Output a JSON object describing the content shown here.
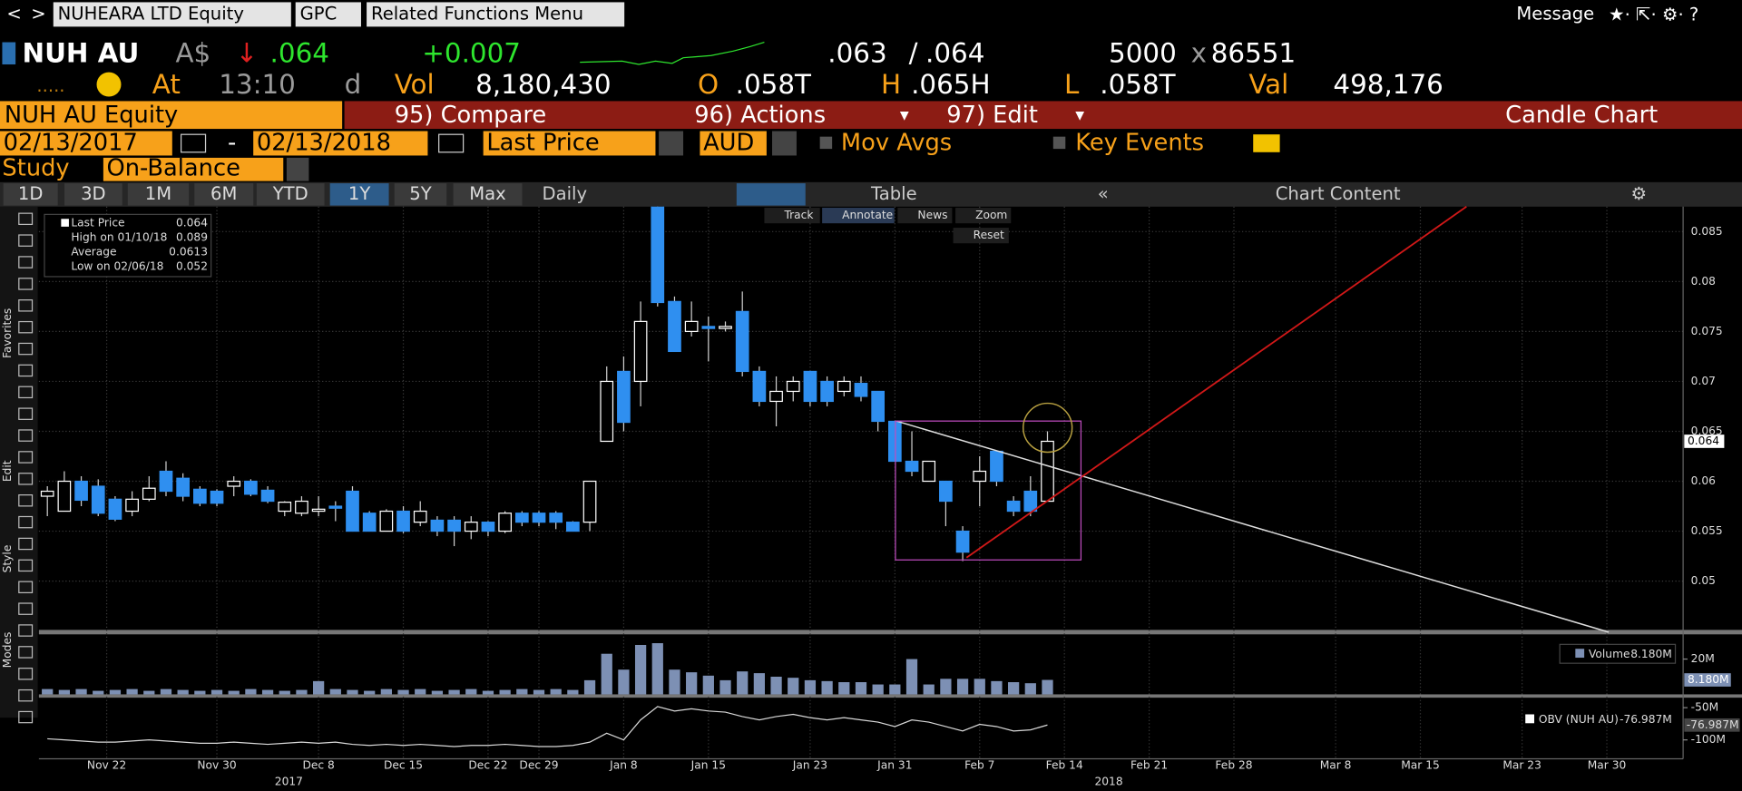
{
  "toolbar": {
    "security": "NUHEARA LTD Equity",
    "source": "GPC",
    "menu": "Related Functions Menu",
    "message": "Message"
  },
  "quote": {
    "ticker": "NUH AU",
    "currency": "A$",
    "last": ".064",
    "change": "+0.007",
    "bid": ".063",
    "separator": "/",
    "ask": ".064",
    "bid_size": "5000",
    "size_separator": "x",
    "ask_size": "86551"
  },
  "quote_detail": {
    "at": "At",
    "time": "13:10",
    "time_flag": "d",
    "vol_label": "Vol",
    "vol": "8,180,430",
    "open_label": "O",
    "open": ".058T",
    "high_label": "H",
    "high": ".065H",
    "low_label": "L",
    "low": ".058T",
    "val_label": "Val",
    "val": "498,176"
  },
  "menu_bar": {
    "security": "NUH AU Equity",
    "compare": "95) Compare",
    "actions": "96) Actions",
    "edit": "97) Edit",
    "title": "Candle Chart"
  },
  "settings": {
    "start": "02/13/2017",
    "dash": "-",
    "end": "02/13/2018",
    "field": "Last Price",
    "currency": "AUD",
    "mov_avgs": "Mov Avgs",
    "key_events": "Key Events",
    "study_label": "Study",
    "study": "On-Balance"
  },
  "tabs": [
    "1D",
    "3D",
    "1M",
    "6M",
    "YTD",
    "1Y",
    "5Y",
    "Max"
  ],
  "frequency": "Daily",
  "table": "Table",
  "chart_content": "Chart Content",
  "chart_tools": [
    "Track",
    "Annotate",
    "News",
    "Zoom",
    "Reset"
  ],
  "side_labels": [
    "Favorites",
    "Edit",
    "Style",
    "Modes"
  ],
  "chart_data": [
    {
      "type": "candlestick",
      "up_color": "#ffffff",
      "down_color": "#2f8ff0",
      "grid": true,
      "legend": [
        {
          "name": "Last Price",
          "value": "0.064"
        },
        {
          "name": "High on 01/10/18",
          "value": "0.089"
        },
        {
          "name": "Average",
          "value": "0.0613"
        },
        {
          "name": "Low on 02/06/18",
          "value": "0.052"
        }
      ],
      "open": [
        0.0585,
        0.057,
        0.06,
        0.0595,
        0.0582,
        0.057,
        0.0582,
        0.061,
        0.0603,
        0.0592,
        0.059,
        0.0595,
        0.06,
        0.0591,
        0.057,
        0.0568,
        0.057,
        0.0575,
        0.059,
        0.0568,
        0.055,
        0.057,
        0.0559,
        0.0561,
        0.0561,
        0.055,
        0.0559,
        0.055,
        0.0568,
        0.0568,
        0.0568,
        0.0559,
        0.0559,
        0.064,
        0.071,
        0.07,
        0.088,
        0.078,
        0.075,
        0.0755,
        0.0753,
        0.077,
        0.071,
        0.068,
        0.069,
        0.071,
        0.07,
        0.069,
        0.0698,
        0.069,
        0.066,
        0.062,
        0.06,
        0.06,
        0.055,
        0.06,
        0.063,
        0.058,
        0.059,
        0.058
      ],
      "high": [
        0.0595,
        0.061,
        0.0605,
        0.0602,
        0.0585,
        0.059,
        0.0605,
        0.062,
        0.0608,
        0.0595,
        0.0592,
        0.0605,
        0.0602,
        0.0595,
        0.058,
        0.0585,
        0.0585,
        0.058,
        0.0595,
        0.057,
        0.0572,
        0.0575,
        0.058,
        0.0565,
        0.0565,
        0.0565,
        0.056,
        0.057,
        0.057,
        0.057,
        0.057,
        0.056,
        0.06,
        0.0715,
        0.0725,
        0.078,
        0.089,
        0.0785,
        0.078,
        0.0765,
        0.076,
        0.079,
        0.0715,
        0.0705,
        0.0705,
        0.071,
        0.0705,
        0.0705,
        0.0705,
        0.069,
        0.066,
        0.065,
        0.062,
        0.06,
        0.0555,
        0.0625,
        0.063,
        0.0585,
        0.0605,
        0.065
      ],
      "low": [
        0.0565,
        0.057,
        0.0575,
        0.0565,
        0.056,
        0.0565,
        0.058,
        0.0585,
        0.058,
        0.0575,
        0.0575,
        0.0585,
        0.0585,
        0.0578,
        0.0565,
        0.0565,
        0.0565,
        0.056,
        0.055,
        0.055,
        0.055,
        0.0548,
        0.0555,
        0.0545,
        0.0535,
        0.0542,
        0.0545,
        0.0548,
        0.0555,
        0.0555,
        0.0552,
        0.055,
        0.055,
        0.064,
        0.065,
        0.0675,
        0.0775,
        0.073,
        0.0745,
        0.072,
        0.075,
        0.0705,
        0.0675,
        0.0655,
        0.068,
        0.0675,
        0.0675,
        0.0685,
        0.068,
        0.065,
        0.062,
        0.0605,
        0.06,
        0.0555,
        0.052,
        0.0575,
        0.0595,
        0.0565,
        0.0565,
        0.058
      ],
      "close": [
        0.059,
        0.06,
        0.0581,
        0.0568,
        0.0562,
        0.0582,
        0.0593,
        0.059,
        0.0585,
        0.0578,
        0.0578,
        0.06,
        0.0587,
        0.058,
        0.0579,
        0.058,
        0.0572,
        0.0573,
        0.055,
        0.055,
        0.057,
        0.055,
        0.057,
        0.055,
        0.055,
        0.0559,
        0.055,
        0.0568,
        0.0559,
        0.0559,
        0.0559,
        0.055,
        0.06,
        0.07,
        0.0659,
        0.076,
        0.0779,
        0.073,
        0.076,
        0.0753,
        0.0755,
        0.071,
        0.068,
        0.069,
        0.07,
        0.068,
        0.068,
        0.07,
        0.0685,
        0.066,
        0.062,
        0.061,
        0.062,
        0.058,
        0.0529,
        0.061,
        0.06,
        0.057,
        0.057,
        0.064
      ],
      "xlim": [
        -0.5,
        96.5
      ],
      "xticks": [
        {
          "value": 3.5,
          "label": "Nov 22"
        },
        {
          "value": 10,
          "label": "Nov 30"
        },
        {
          "value": 16,
          "label": "Dec 8"
        },
        {
          "value": 21,
          "label": "Dec 15"
        },
        {
          "value": 26,
          "label": "Dec 22"
        },
        {
          "value": 29,
          "label": "Dec 29"
        },
        {
          "value": 34,
          "label": "Jan 8"
        },
        {
          "value": 39,
          "label": "Jan 15"
        },
        {
          "value": 45,
          "label": "Jan 23"
        },
        {
          "value": 50,
          "label": "Jan 31"
        },
        {
          "value": 55,
          "label": "Feb 7"
        },
        {
          "value": 60,
          "label": "Feb 14"
        },
        {
          "value": 65,
          "label": "Feb 21"
        },
        {
          "value": 70,
          "label": "Feb 28"
        },
        {
          "value": 76,
          "label": "Mar 8"
        },
        {
          "value": 81,
          "label": "Mar 15"
        },
        {
          "value": 87,
          "label": "Mar 23"
        },
        {
          "value": 92,
          "label": "Mar 30"
        }
      ],
      "years": [
        "2017",
        "2018"
      ],
      "ylim": [
        0.045,
        0.0875
      ],
      "yticks": [
        0.05,
        0.055,
        0.06,
        0.065,
        0.07,
        0.075,
        0.08,
        0.085
      ]
    },
    {
      "type": "bar",
      "name": "Volume",
      "color": "#7d90b4",
      "last_label": "8.180M",
      "values": [
        3,
        2.5,
        3,
        2,
        2.5,
        3,
        2,
        3,
        2.5,
        2,
        2.5,
        2,
        3,
        2.5,
        2,
        2.5,
        7.5,
        3,
        2.5,
        2,
        3,
        2.5,
        3,
        2,
        2.5,
        3,
        2,
        2.5,
        3,
        2.5,
        3,
        2.5,
        8,
        23,
        14,
        28,
        29,
        14,
        12.5,
        10.6,
        8,
        13,
        12,
        10,
        9.4,
        8,
        7.5,
        6.9,
        6.9,
        5.6,
        5.6,
        20,
        5.6,
        8.8,
        8.8,
        8.8,
        7.5,
        6.9,
        6.3,
        8.18
      ],
      "ylim": [
        0,
        34
      ],
      "yticks": [
        {
          "value": 20,
          "label": "20M"
        }
      ]
    },
    {
      "type": "line",
      "name": "OBV (NUH AU)",
      "color": "#d8d8d8",
      "last_label": "-76.987M",
      "values": [
        -98.3,
        -100,
        -101.7,
        -103.4,
        -103.4,
        -101.7,
        -100,
        -101.7,
        -103.4,
        -105.2,
        -105.2,
        -103.4,
        -105.2,
        -106.9,
        -105.2,
        -103.4,
        -105.2,
        -103.4,
        -106.9,
        -108.6,
        -106.9,
        -108.6,
        -106.9,
        -108.6,
        -110.3,
        -108.6,
        -108.6,
        -106.9,
        -108.6,
        -110.3,
        -110.3,
        -108.6,
        -103.4,
        -89.7,
        -100,
        -69,
        -48.3,
        -55.2,
        -51.7,
        -55.2,
        -56.9,
        -63.8,
        -69,
        -63.8,
        -60.3,
        -65.5,
        -69,
        -65.5,
        -69,
        -72.4,
        -79.3,
        -69,
        -72.4,
        -79.3,
        -86.2,
        -75.9,
        -79.3,
        -86.2,
        -84.5,
        -76.987
      ],
      "ylim": [
        -129.3,
        -34.5
      ],
      "yticks": [
        {
          "value": -50,
          "label": "-50M"
        },
        {
          "value": -100,
          "label": "-100M"
        }
      ]
    }
  ]
}
